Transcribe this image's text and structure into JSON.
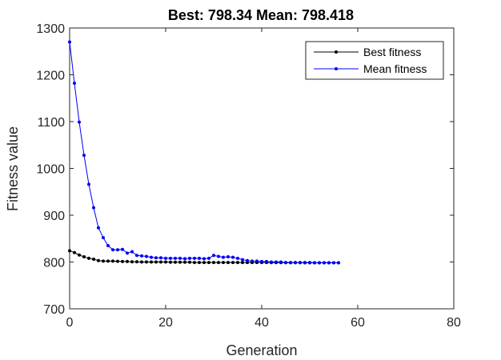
{
  "chart_data": {
    "type": "line",
    "title": "Best: 798.34 Mean: 798.418",
    "xlabel": "Generation",
    "ylabel": "Fitness value",
    "xlim": [
      0,
      80
    ],
    "ylim": [
      700,
      1300
    ],
    "xticks": [
      "0",
      "20",
      "40",
      "60",
      "80"
    ],
    "yticks": [
      "700",
      "800",
      "900",
      "1000",
      "1100",
      "1200",
      "1300"
    ],
    "grid": false,
    "legend_position": "top-right",
    "x": [
      0,
      1,
      2,
      3,
      4,
      5,
      6,
      7,
      8,
      9,
      10,
      11,
      12,
      13,
      14,
      15,
      16,
      17,
      18,
      19,
      20,
      21,
      22,
      23,
      24,
      25,
      26,
      27,
      28,
      29,
      30,
      31,
      32,
      33,
      34,
      35,
      36,
      37,
      38,
      39,
      40,
      41,
      42,
      43,
      44,
      45,
      46,
      47,
      48,
      49,
      50,
      51,
      52,
      53,
      54,
      55,
      56
    ],
    "series": [
      {
        "name": "Best fitness",
        "color": "#000000",
        "values": [
          824,
          820,
          815,
          811,
          808,
          806,
          803,
          802,
          802,
          802,
          801.5,
          801,
          801,
          800.5,
          800.5,
          800,
          800,
          800,
          800,
          800,
          800,
          799.5,
          799.5,
          799.5,
          799.5,
          799.5,
          799,
          799,
          799,
          799,
          799,
          799,
          799,
          799,
          799,
          799,
          799,
          799,
          799,
          799,
          799,
          799,
          798.8,
          798.8,
          798.7,
          798.6,
          798.6,
          798.5,
          798.5,
          798.4,
          798.4,
          798.4,
          798.4,
          798.4,
          798.34,
          798.34,
          798.34
        ]
      },
      {
        "name": "Mean fitness",
        "color": "#0000ff",
        "values": [
          1270,
          1182,
          1099,
          1028,
          966,
          916,
          873,
          852,
          835,
          826,
          826,
          827,
          819,
          822,
          814,
          813,
          812,
          810,
          809,
          809,
          808,
          808,
          808,
          808,
          807,
          808,
          808,
          808,
          807,
          808,
          814,
          812,
          810,
          811,
          810,
          808,
          805,
          803,
          802,
          802,
          801,
          801,
          800,
          800,
          800,
          799,
          799,
          799,
          799,
          799,
          799,
          798.6,
          798.5,
          798.5,
          798.45,
          798.43,
          798.418
        ]
      }
    ]
  }
}
